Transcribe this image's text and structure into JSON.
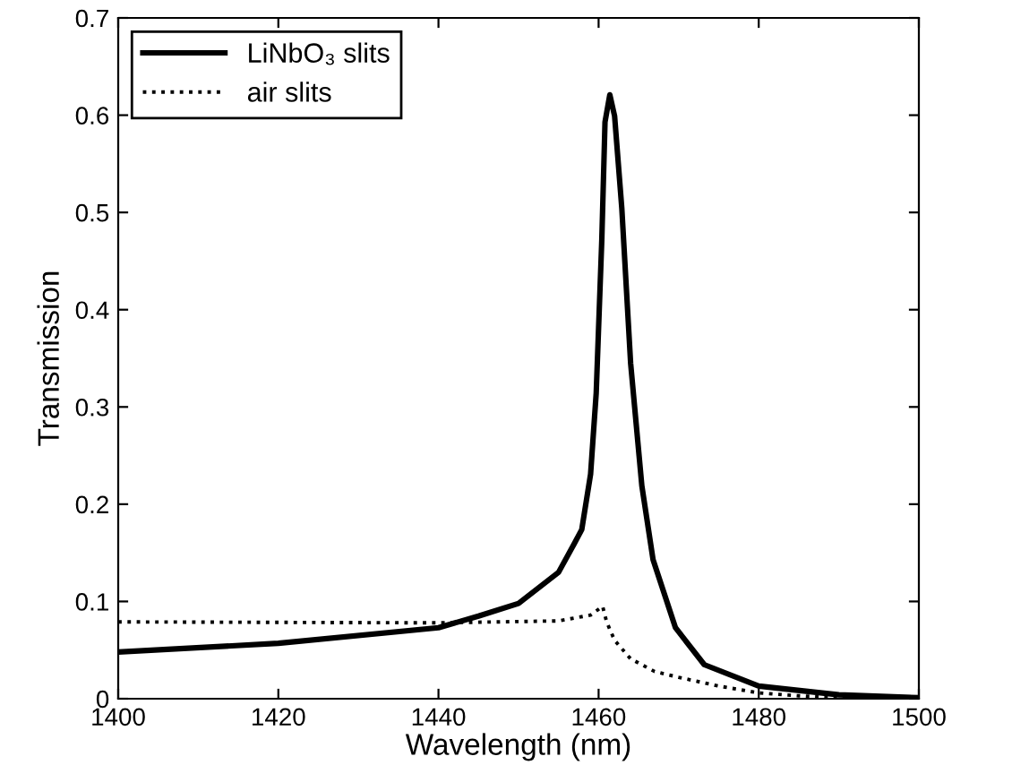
{
  "chart_data": {
    "type": "line",
    "xlabel": "Wavelength (nm)",
    "ylabel": "Transmission",
    "xlim": [
      1400,
      1500
    ],
    "xticks": [
      1400,
      1420,
      1440,
      1460,
      1480,
      1500
    ],
    "ylim": [
      0,
      0.7
    ],
    "yticks": [
      0,
      0.1,
      0.2,
      0.3,
      0.4,
      0.5,
      0.6,
      0.7
    ],
    "grid": false,
    "legend": "top left",
    "series": [
      {
        "name": "LiNbO₃ slits",
        "color": "#000000",
        "line_style": "solid",
        "x": [
          1400,
          1420,
          1440,
          1445,
          1450,
          1455,
          1457,
          1457.9,
          1459,
          1459.7,
          1460.4,
          1460.8,
          1461.4,
          1462,
          1462.9,
          1464,
          1465.4,
          1466.8,
          1469.6,
          1473.2,
          1480,
          1490,
          1500
        ],
        "values": [
          0.048,
          0.057,
          0.073,
          0.085,
          0.098,
          0.13,
          0.16,
          0.174,
          0.231,
          0.314,
          0.472,
          0.593,
          0.621,
          0.599,
          0.504,
          0.345,
          0.219,
          0.143,
          0.073,
          0.035,
          0.013,
          0.004,
          0.001
        ]
      },
      {
        "name": "air slits",
        "color": "#000000",
        "line_style": "dotted",
        "x": [
          1400,
          1440,
          1455,
          1459,
          1460.5,
          1461,
          1462,
          1464,
          1467,
          1470,
          1475,
          1480,
          1485,
          1490,
          1500
        ],
        "values": [
          0.079,
          0.078,
          0.08,
          0.086,
          0.095,
          0.079,
          0.06,
          0.041,
          0.028,
          0.022,
          0.013,
          0.006,
          0.003,
          0.001,
          0
        ]
      }
    ]
  }
}
